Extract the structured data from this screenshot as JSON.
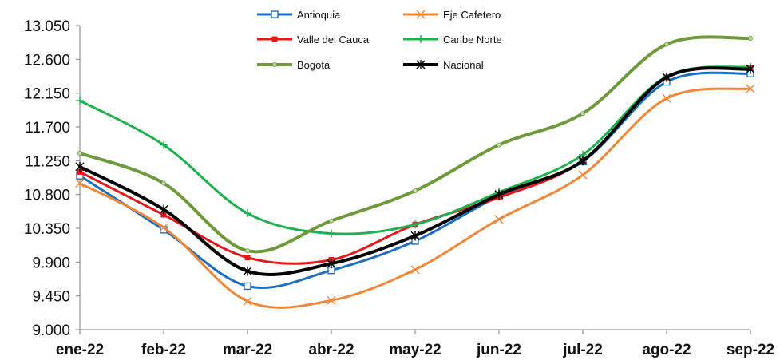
{
  "chart_data": {
    "type": "line",
    "title": "",
    "xlabel": "",
    "ylabel": "",
    "categories": [
      "ene-22",
      "feb-22",
      "mar-22",
      "abr-22",
      "may-22",
      "jun-22",
      "jul-22",
      "ago-22",
      "sep-22"
    ],
    "y_ticks": [
      "9.000",
      "9.450",
      "9.900",
      "10.350",
      "10.800",
      "11.250",
      "11.700",
      "12.150",
      "12.600",
      "13.050"
    ],
    "ylim": [
      9000,
      13050
    ],
    "grid": false,
    "legend_position": "top",
    "series": [
      {
        "name": "Antioquia",
        "color": "#1f6fbf",
        "marker": "square-open",
        "values": [
          11050,
          10330,
          9580,
          9790,
          10180,
          10780,
          11240,
          12300,
          12410
        ]
      },
      {
        "name": "Eje Cafetero",
        "color": "#f0883a",
        "marker": "x",
        "values": [
          10950,
          10360,
          9380,
          9390,
          9800,
          10470,
          11060,
          12080,
          12210
        ]
      },
      {
        "name": "Valle del Cauca",
        "color": "#e41a1a",
        "marker": "square-filled",
        "values": [
          11100,
          10530,
          9960,
          9930,
          10400,
          10760,
          11250,
          12360,
          12490
        ]
      },
      {
        "name": "Caribe Norte",
        "color": "#1fb050",
        "marker": "plus",
        "values": [
          12050,
          11460,
          10550,
          10280,
          10400,
          10830,
          11330,
          12370,
          12500
        ]
      },
      {
        "name": "Bogotá",
        "color": "#6e9a3c",
        "marker": "dot",
        "values": [
          11350,
          10950,
          10050,
          10450,
          10850,
          11460,
          11880,
          12800,
          12880
        ]
      },
      {
        "name": "Nacional",
        "color": "#000000",
        "marker": "star",
        "values": [
          11170,
          10600,
          9780,
          9880,
          10250,
          10800,
          11250,
          12360,
          12470
        ]
      }
    ]
  }
}
